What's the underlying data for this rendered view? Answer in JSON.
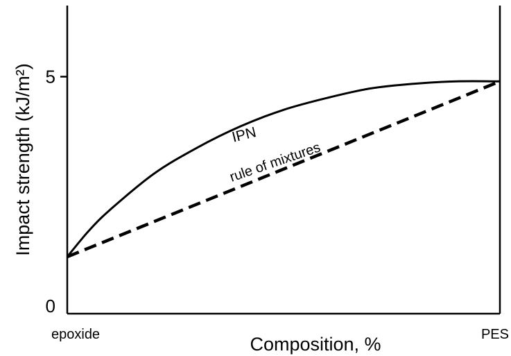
{
  "chart_data": {
    "type": "line",
    "title": "",
    "xlabel": "Composition, %",
    "ylabel": "Impact strength (kJ/m²)",
    "x_endpoints": [
      "epoxide",
      "PES"
    ],
    "xlim": [
      0,
      100
    ],
    "ylim": [
      0,
      6.5
    ],
    "y_ticks": [
      {
        "value": 0,
        "label": "0"
      },
      {
        "value": 5,
        "label": "5"
      }
    ],
    "grid": false,
    "series": [
      {
        "name": "IPN",
        "style": "solid",
        "color": "#000000",
        "x": [
          0,
          5,
          10,
          20,
          30,
          40,
          50,
          60,
          70,
          80,
          90,
          100
        ],
        "y": [
          1.2,
          1.75,
          2.2,
          2.95,
          3.5,
          3.95,
          4.3,
          4.55,
          4.75,
          4.85,
          4.9,
          4.9
        ]
      },
      {
        "name": "rule of mixtures",
        "style": "dashed",
        "color": "#000000",
        "x": [
          0,
          100
        ],
        "y": [
          1.2,
          4.9
        ]
      }
    ]
  }
}
